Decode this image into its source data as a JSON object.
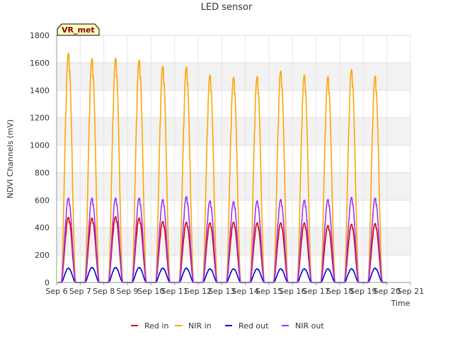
{
  "chart_data": {
    "type": "line",
    "title": "LED sensor",
    "xlabel": "Time",
    "ylabel": "NDVI Channels (mV)",
    "xlim": [
      6,
      21
    ],
    "ylim": [
      0,
      1800
    ],
    "x_ticks": [
      6,
      7,
      8,
      9,
      10,
      11,
      12,
      13,
      14,
      15,
      16,
      17,
      18,
      19,
      20,
      21
    ],
    "x_tick_labels": [
      "Sep 6",
      "Sep 7",
      "Sep 8",
      "Sep 9",
      "Sep 10",
      "Sep 11",
      "Sep 12",
      "Sep 13",
      "Sep 14",
      "Sep 15",
      "Sep 16",
      "Sep 17",
      "Sep 18",
      "Sep 19",
      "Sep 20",
      "Sep 21"
    ],
    "y_ticks": [
      0,
      200,
      400,
      600,
      800,
      1000,
      1200,
      1400,
      1600,
      1800
    ],
    "y_tick_labels": [
      "0",
      "200",
      "400",
      "600",
      "800",
      "1000",
      "1200",
      "1400",
      "1600",
      "1800"
    ],
    "grid": true,
    "legend_position": "bottom-center",
    "site_label": "VR_met",
    "peak_days": [
      6.5,
      7.5,
      8.5,
      9.5,
      10.5,
      11.5,
      12.5,
      13.5,
      14.5,
      15.5,
      16.5,
      17.5,
      18.5,
      19.5
    ],
    "series": [
      {
        "name": "Red in",
        "color": "#dd0000",
        "peaks": [
          475,
          470,
          480,
          470,
          445,
          440,
          435,
          440,
          435,
          435,
          435,
          415,
          425,
          430
        ]
      },
      {
        "name": "NIR in",
        "color": "#ffa500",
        "peaks": [
          1670,
          1630,
          1635,
          1620,
          1575,
          1570,
          1510,
          1495,
          1500,
          1540,
          1510,
          1500,
          1550,
          1505
        ]
      },
      {
        "name": "Red out",
        "color": "#0000cc",
        "peaks": [
          105,
          110,
          110,
          110,
          105,
          105,
          100,
          100,
          100,
          100,
          100,
          100,
          100,
          105
        ]
      },
      {
        "name": "NIR out",
        "color": "#9b30ff",
        "peaks": [
          615,
          615,
          615,
          615,
          605,
          625,
          595,
          590,
          595,
          605,
          600,
          605,
          620,
          615
        ]
      }
    ]
  }
}
